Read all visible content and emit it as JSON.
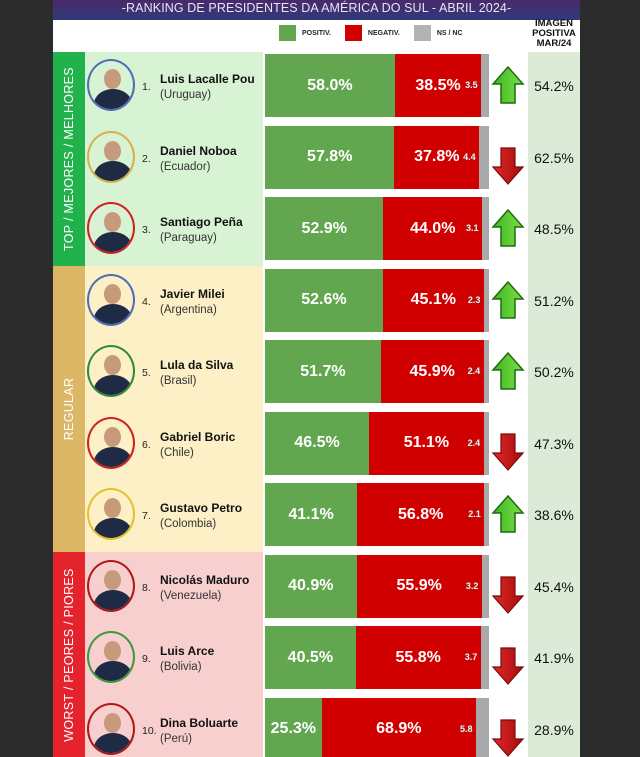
{
  "title": "-RANKING DE PRESIDENTES DA AMÉRICA DO SUL - ABRIL 2024-",
  "legend": [
    {
      "label": "POSITIV.",
      "color": "#62a64f"
    },
    {
      "label": "NEGATIV.",
      "color": "#d00000"
    },
    {
      "label": "NS / NC",
      "color": "#b3b3b3"
    }
  ],
  "right_column_header": [
    "IMAGEN",
    "POSITIVA",
    "MAR/24"
  ],
  "sections": [
    {
      "label": "TOP / MEJORES / MELHORES",
      "tab_color": "#21b24b",
      "bg_color": "#d8f3d3"
    },
    {
      "label": "REGULAR",
      "tab_color": "#dcb866",
      "bg_color": "#fdf0c6"
    },
    {
      "label": "WORST / PEORES / PIORES",
      "tab_color": "#e4232c",
      "bg_color": "#f7cfcf"
    }
  ],
  "rows": [
    {
      "rank": "1.",
      "name": "Luis Lacalle Pou",
      "country": "(Uruguay)",
      "positive": "58.0%",
      "negative": "38.5%",
      "ns": "3.5",
      "trend": "up",
      "previous": "54.2%",
      "ring": "#4a6fb5"
    },
    {
      "rank": "2.",
      "name": "Daniel Noboa",
      "country": "(Ecuador)",
      "positive": "57.8%",
      "negative": "37.8%",
      "ns": "4.4",
      "trend": "down",
      "previous": "62.5%",
      "ring": "#d6b04a"
    },
    {
      "rank": "3.",
      "name": "Santiago Peña",
      "country": "(Paraguay)",
      "positive": "52.9%",
      "negative": "44.0%",
      "ns": "3.1",
      "trend": "up",
      "previous": "48.5%",
      "ring": "#d02020"
    },
    {
      "rank": "4.",
      "name": "Javier Milei",
      "country": "(Argentina)",
      "positive": "52.6%",
      "negative": "45.1%",
      "ns": "2.3",
      "trend": "up",
      "previous": "51.2%",
      "ring": "#4a6fb5"
    },
    {
      "rank": "5.",
      "name": "Lula da Silva",
      "country": "(Brasil)",
      "positive": "51.7%",
      "negative": "45.9%",
      "ns": "2.4",
      "trend": "up",
      "previous": "50.2%",
      "ring": "#2e8b3a"
    },
    {
      "rank": "6.",
      "name": "Gabriel Boric",
      "country": "(Chile)",
      "positive": "46.5%",
      "negative": "51.1%",
      "ns": "2.4",
      "trend": "down",
      "previous": "47.3%",
      "ring": "#d02020"
    },
    {
      "rank": "7.",
      "name": "Gustavo Petro",
      "country": "(Colombia)",
      "positive": "41.1%",
      "negative": "56.8%",
      "ns": "2.1",
      "trend": "up",
      "previous": "38.6%",
      "ring": "#e2c22a"
    },
    {
      "rank": "8.",
      "name": "Nicolás Maduro",
      "country": "(Venezuela)",
      "positive": "40.9%",
      "negative": "55.9%",
      "ns": "3.2",
      "trend": "down",
      "previous": "45.4%",
      "ring": "#b01818"
    },
    {
      "rank": "9.",
      "name": "Luis Arce",
      "country": "(Bolivia)",
      "positive": "40.5%",
      "negative": "55.8%",
      "ns": "3.7",
      "trend": "down",
      "previous": "41.9%",
      "ring": "#3c9a3c"
    },
    {
      "rank": "10.",
      "name": "Dina Boluarte",
      "country": "(Perú)",
      "positive": "25.3%",
      "negative": "68.9%",
      "ns": "5.8",
      "trend": "down",
      "previous": "28.9%",
      "ring": "#b01818"
    }
  ],
  "chart_data": {
    "type": "bar",
    "stacked": true,
    "orientation": "horizontal",
    "title": "-RANKING DE PRESIDENTES DA AMÉRICA DO SUL - ABRIL 2024-",
    "categories": [
      "Luis Lacalle Pou (Uruguay)",
      "Daniel Noboa (Ecuador)",
      "Santiago Peña (Paraguay)",
      "Javier Milei (Argentina)",
      "Lula da Silva (Brasil)",
      "Gabriel Boric (Chile)",
      "Gustavo Petro (Colombia)",
      "Nicolás Maduro (Venezuela)",
      "Luis Arce (Bolivia)",
      "Dina Boluarte (Perú)"
    ],
    "series": [
      {
        "name": "POSITIV.",
        "color": "#62a64f",
        "values": [
          58.0,
          57.8,
          52.9,
          52.6,
          51.7,
          46.5,
          41.1,
          40.9,
          40.5,
          25.3
        ]
      },
      {
        "name": "NEGATIV.",
        "color": "#d00000",
        "values": [
          38.5,
          37.8,
          44.0,
          45.1,
          45.9,
          51.1,
          56.8,
          55.9,
          55.8,
          68.9
        ]
      },
      {
        "name": "NS / NC",
        "color": "#a9a9a9",
        "values": [
          3.5,
          4.4,
          3.1,
          2.3,
          2.4,
          2.4,
          2.1,
          3.2,
          3.7,
          5.8
        ]
      }
    ],
    "extra_columns": {
      "IMAGEN POSITIVA MAR/24": [
        54.2,
        62.5,
        48.5,
        51.2,
        50.2,
        47.3,
        38.6,
        45.4,
        41.9,
        28.9
      ],
      "trend": [
        "up",
        "down",
        "up",
        "up",
        "up",
        "down",
        "up",
        "down",
        "down",
        "down"
      ]
    },
    "groups": [
      {
        "label": "TOP / MEJORES / MELHORES",
        "ranks": [
          1,
          2,
          3
        ]
      },
      {
        "label": "REGULAR",
        "ranks": [
          4,
          5,
          6,
          7
        ]
      },
      {
        "label": "WORST / PEORES / PIORES",
        "ranks": [
          8,
          9,
          10
        ]
      }
    ],
    "xlim": [
      0,
      100
    ],
    "legend_position": "top"
  }
}
